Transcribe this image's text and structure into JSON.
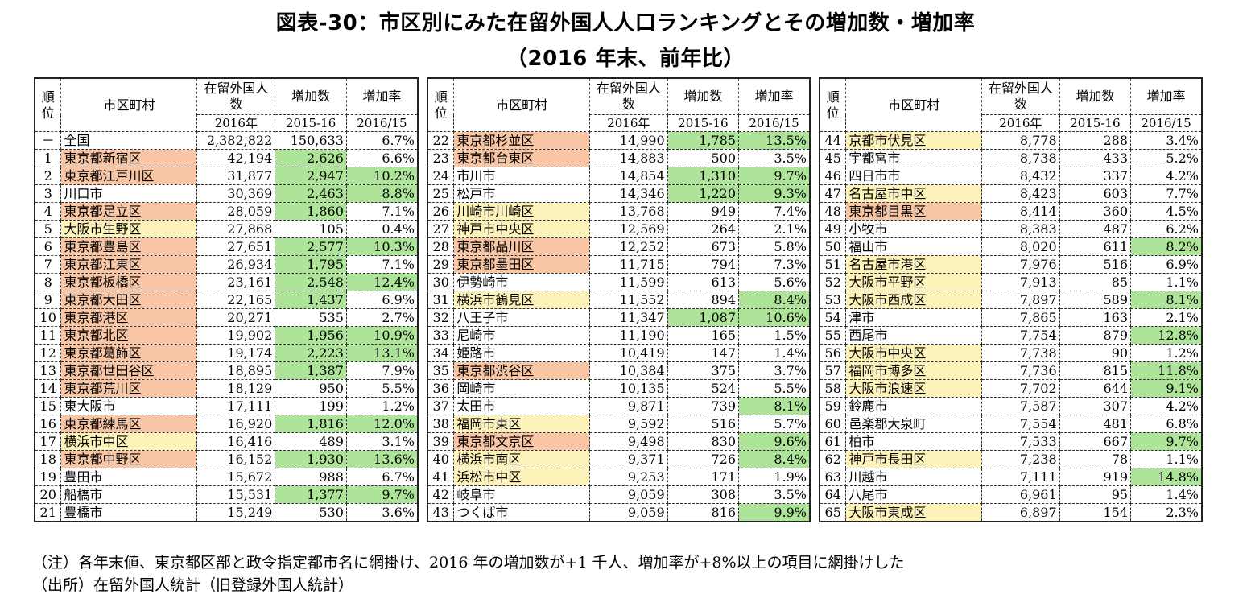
{
  "title": "図表-30：市区別にみた在留外国人人口ランキングとその増加数・増加率",
  "subtitle": "（2016 年末、前年比）",
  "headers": {
    "rank": "順位",
    "name": "市区町村",
    "pop": "在留外国人数",
    "inc": "増加数",
    "rate": "増加率",
    "pop_sub": "2016年",
    "inc_sub": "2015-16",
    "rate_sub": "2016/15"
  },
  "tables": [
    {
      "rows": [
        {
          "rank": "－",
          "name": "全国",
          "pop": "2,382,822",
          "inc": "150,633",
          "rate": "6.7%",
          "hl": "",
          "inc_hl": false,
          "rate_hl": false
        },
        {
          "rank": "1",
          "name": "東京都新宿区",
          "pop": "42,194",
          "inc": "2,626",
          "rate": "6.6%",
          "hl": "o",
          "inc_hl": true,
          "rate_hl": false
        },
        {
          "rank": "2",
          "name": "東京都江戸川区",
          "pop": "31,877",
          "inc": "2,947",
          "rate": "10.2%",
          "hl": "o",
          "inc_hl": true,
          "rate_hl": true
        },
        {
          "rank": "3",
          "name": "川口市",
          "pop": "30,369",
          "inc": "2,463",
          "rate": "8.8%",
          "hl": "",
          "inc_hl": true,
          "rate_hl": true
        },
        {
          "rank": "4",
          "name": "東京都足立区",
          "pop": "28,059",
          "inc": "1,860",
          "rate": "7.1%",
          "hl": "o",
          "inc_hl": true,
          "rate_hl": false
        },
        {
          "rank": "5",
          "name": "大阪市生野区",
          "pop": "27,868",
          "inc": "105",
          "rate": "0.4%",
          "hl": "y",
          "inc_hl": false,
          "rate_hl": false
        },
        {
          "rank": "6",
          "name": "東京都豊島区",
          "pop": "27,651",
          "inc": "2,577",
          "rate": "10.3%",
          "hl": "o",
          "inc_hl": true,
          "rate_hl": true
        },
        {
          "rank": "7",
          "name": "東京都江東区",
          "pop": "26,934",
          "inc": "1,795",
          "rate": "7.1%",
          "hl": "o",
          "inc_hl": true,
          "rate_hl": false
        },
        {
          "rank": "8",
          "name": "東京都板橋区",
          "pop": "23,161",
          "inc": "2,548",
          "rate": "12.4%",
          "hl": "o",
          "inc_hl": true,
          "rate_hl": true
        },
        {
          "rank": "9",
          "name": "東京都大田区",
          "pop": "22,165",
          "inc": "1,437",
          "rate": "6.9%",
          "hl": "o",
          "inc_hl": true,
          "rate_hl": false
        },
        {
          "rank": "10",
          "name": "東京都港区",
          "pop": "20,271",
          "inc": "535",
          "rate": "2.7%",
          "hl": "o",
          "inc_hl": false,
          "rate_hl": false
        },
        {
          "rank": "11",
          "name": "東京都北区",
          "pop": "19,902",
          "inc": "1,956",
          "rate": "10.9%",
          "hl": "o",
          "inc_hl": true,
          "rate_hl": true
        },
        {
          "rank": "12",
          "name": "東京都葛飾区",
          "pop": "19,174",
          "inc": "2,223",
          "rate": "13.1%",
          "hl": "o",
          "inc_hl": true,
          "rate_hl": true
        },
        {
          "rank": "13",
          "name": "東京都世田谷区",
          "pop": "18,895",
          "inc": "1,387",
          "rate": "7.9%",
          "hl": "o",
          "inc_hl": true,
          "rate_hl": false
        },
        {
          "rank": "14",
          "name": "東京都荒川区",
          "pop": "18,129",
          "inc": "950",
          "rate": "5.5%",
          "hl": "o",
          "inc_hl": false,
          "rate_hl": false
        },
        {
          "rank": "15",
          "name": "東大阪市",
          "pop": "17,111",
          "inc": "199",
          "rate": "1.2%",
          "hl": "",
          "inc_hl": false,
          "rate_hl": false
        },
        {
          "rank": "16",
          "name": "東京都練馬区",
          "pop": "16,920",
          "inc": "1,816",
          "rate": "12.0%",
          "hl": "o",
          "inc_hl": true,
          "rate_hl": true
        },
        {
          "rank": "17",
          "name": "横浜市中区",
          "pop": "16,416",
          "inc": "489",
          "rate": "3.1%",
          "hl": "y",
          "inc_hl": false,
          "rate_hl": false
        },
        {
          "rank": "18",
          "name": "東京都中野区",
          "pop": "16,152",
          "inc": "1,930",
          "rate": "13.6%",
          "hl": "o",
          "inc_hl": true,
          "rate_hl": true
        },
        {
          "rank": "19",
          "name": "豊田市",
          "pop": "15,672",
          "inc": "988",
          "rate": "6.7%",
          "hl": "",
          "inc_hl": false,
          "rate_hl": false
        },
        {
          "rank": "20",
          "name": "船橋市",
          "pop": "15,531",
          "inc": "1,377",
          "rate": "9.7%",
          "hl": "",
          "inc_hl": true,
          "rate_hl": true
        },
        {
          "rank": "21",
          "name": "豊橋市",
          "pop": "15,249",
          "inc": "530",
          "rate": "3.6%",
          "hl": "",
          "inc_hl": false,
          "rate_hl": false
        }
      ]
    },
    {
      "rows": [
        {
          "rank": "22",
          "name": "東京都杉並区",
          "pop": "14,990",
          "inc": "1,785",
          "rate": "13.5%",
          "hl": "o",
          "inc_hl": true,
          "rate_hl": true
        },
        {
          "rank": "23",
          "name": "東京都台東区",
          "pop": "14,883",
          "inc": "500",
          "rate": "3.5%",
          "hl": "o",
          "inc_hl": false,
          "rate_hl": false
        },
        {
          "rank": "24",
          "name": "市川市",
          "pop": "14,854",
          "inc": "1,310",
          "rate": "9.7%",
          "hl": "",
          "inc_hl": true,
          "rate_hl": true
        },
        {
          "rank": "25",
          "name": "松戸市",
          "pop": "14,346",
          "inc": "1,220",
          "rate": "9.3%",
          "hl": "",
          "inc_hl": true,
          "rate_hl": true
        },
        {
          "rank": "26",
          "name": "川崎市川崎区",
          "pop": "13,768",
          "inc": "949",
          "rate": "7.4%",
          "hl": "y",
          "inc_hl": false,
          "rate_hl": false
        },
        {
          "rank": "27",
          "name": "神戸市中央区",
          "pop": "12,569",
          "inc": "264",
          "rate": "2.1%",
          "hl": "y",
          "inc_hl": false,
          "rate_hl": false
        },
        {
          "rank": "28",
          "name": "東京都品川区",
          "pop": "12,252",
          "inc": "673",
          "rate": "5.8%",
          "hl": "o",
          "inc_hl": false,
          "rate_hl": false
        },
        {
          "rank": "29",
          "name": "東京都墨田区",
          "pop": "11,715",
          "inc": "794",
          "rate": "7.3%",
          "hl": "o",
          "inc_hl": false,
          "rate_hl": false
        },
        {
          "rank": "30",
          "name": "伊勢崎市",
          "pop": "11,599",
          "inc": "613",
          "rate": "5.6%",
          "hl": "",
          "inc_hl": false,
          "rate_hl": false
        },
        {
          "rank": "31",
          "name": "横浜市鶴見区",
          "pop": "11,552",
          "inc": "894",
          "rate": "8.4%",
          "hl": "y",
          "inc_hl": false,
          "rate_hl": true
        },
        {
          "rank": "32",
          "name": "八王子市",
          "pop": "11,347",
          "inc": "1,087",
          "rate": "10.6%",
          "hl": "",
          "inc_hl": true,
          "rate_hl": true
        },
        {
          "rank": "33",
          "name": "尼崎市",
          "pop": "11,190",
          "inc": "165",
          "rate": "1.5%",
          "hl": "",
          "inc_hl": false,
          "rate_hl": false
        },
        {
          "rank": "34",
          "name": "姫路市",
          "pop": "10,419",
          "inc": "147",
          "rate": "1.4%",
          "hl": "",
          "inc_hl": false,
          "rate_hl": false
        },
        {
          "rank": "35",
          "name": "東京都渋谷区",
          "pop": "10,384",
          "inc": "375",
          "rate": "3.7%",
          "hl": "o",
          "inc_hl": false,
          "rate_hl": false
        },
        {
          "rank": "36",
          "name": "岡崎市",
          "pop": "10,135",
          "inc": "524",
          "rate": "5.5%",
          "hl": "",
          "inc_hl": false,
          "rate_hl": false
        },
        {
          "rank": "37",
          "name": "太田市",
          "pop": "9,871",
          "inc": "739",
          "rate": "8.1%",
          "hl": "",
          "inc_hl": false,
          "rate_hl": true
        },
        {
          "rank": "38",
          "name": "福岡市東区",
          "pop": "9,592",
          "inc": "516",
          "rate": "5.7%",
          "hl": "y",
          "inc_hl": false,
          "rate_hl": false
        },
        {
          "rank": "39",
          "name": "東京都文京区",
          "pop": "9,498",
          "inc": "830",
          "rate": "9.6%",
          "hl": "o",
          "inc_hl": false,
          "rate_hl": true
        },
        {
          "rank": "40",
          "name": "横浜市南区",
          "pop": "9,371",
          "inc": "726",
          "rate": "8.4%",
          "hl": "y",
          "inc_hl": false,
          "rate_hl": true
        },
        {
          "rank": "41",
          "name": "浜松市中区",
          "pop": "9,253",
          "inc": "171",
          "rate": "1.9%",
          "hl": "y",
          "inc_hl": false,
          "rate_hl": false
        },
        {
          "rank": "42",
          "name": "岐阜市",
          "pop": "9,059",
          "inc": "308",
          "rate": "3.5%",
          "hl": "",
          "inc_hl": false,
          "rate_hl": false
        },
        {
          "rank": "43",
          "name": "つくば市",
          "pop": "9,059",
          "inc": "816",
          "rate": "9.9%",
          "hl": "",
          "inc_hl": false,
          "rate_hl": true
        }
      ]
    },
    {
      "rows": [
        {
          "rank": "44",
          "name": "京都市伏見区",
          "pop": "8,778",
          "inc": "288",
          "rate": "3.4%",
          "hl": "y",
          "inc_hl": false,
          "rate_hl": false
        },
        {
          "rank": "45",
          "name": "宇都宮市",
          "pop": "8,738",
          "inc": "433",
          "rate": "5.2%",
          "hl": "",
          "inc_hl": false,
          "rate_hl": false
        },
        {
          "rank": "46",
          "name": "四日市市",
          "pop": "8,432",
          "inc": "337",
          "rate": "4.2%",
          "hl": "",
          "inc_hl": false,
          "rate_hl": false
        },
        {
          "rank": "47",
          "name": "名古屋市中区",
          "pop": "8,423",
          "inc": "603",
          "rate": "7.7%",
          "hl": "y",
          "inc_hl": false,
          "rate_hl": false
        },
        {
          "rank": "48",
          "name": "東京都目黒区",
          "pop": "8,414",
          "inc": "360",
          "rate": "4.5%",
          "hl": "o",
          "inc_hl": false,
          "rate_hl": false
        },
        {
          "rank": "49",
          "name": "小牧市",
          "pop": "8,383",
          "inc": "487",
          "rate": "6.2%",
          "hl": "",
          "inc_hl": false,
          "rate_hl": false
        },
        {
          "rank": "50",
          "name": "福山市",
          "pop": "8,020",
          "inc": "611",
          "rate": "8.2%",
          "hl": "",
          "inc_hl": false,
          "rate_hl": true
        },
        {
          "rank": "51",
          "name": "名古屋市港区",
          "pop": "7,976",
          "inc": "516",
          "rate": "6.9%",
          "hl": "y",
          "inc_hl": false,
          "rate_hl": false
        },
        {
          "rank": "52",
          "name": "大阪市平野区",
          "pop": "7,913",
          "inc": "85",
          "rate": "1.1%",
          "hl": "y",
          "inc_hl": false,
          "rate_hl": false
        },
        {
          "rank": "53",
          "name": "大阪市西成区",
          "pop": "7,897",
          "inc": "589",
          "rate": "8.1%",
          "hl": "y",
          "inc_hl": false,
          "rate_hl": true
        },
        {
          "rank": "54",
          "name": "津市",
          "pop": "7,865",
          "inc": "163",
          "rate": "2.1%",
          "hl": "",
          "inc_hl": false,
          "rate_hl": false
        },
        {
          "rank": "55",
          "name": "西尾市",
          "pop": "7,754",
          "inc": "879",
          "rate": "12.8%",
          "hl": "",
          "inc_hl": false,
          "rate_hl": true
        },
        {
          "rank": "56",
          "name": "大阪市中央区",
          "pop": "7,738",
          "inc": "90",
          "rate": "1.2%",
          "hl": "y",
          "inc_hl": false,
          "rate_hl": false
        },
        {
          "rank": "57",
          "name": "福岡市博多区",
          "pop": "7,736",
          "inc": "815",
          "rate": "11.8%",
          "hl": "y",
          "inc_hl": false,
          "rate_hl": true
        },
        {
          "rank": "58",
          "name": "大阪市浪速区",
          "pop": "7,702",
          "inc": "644",
          "rate": "9.1%",
          "hl": "y",
          "inc_hl": false,
          "rate_hl": true
        },
        {
          "rank": "59",
          "name": "鈴鹿市",
          "pop": "7,587",
          "inc": "307",
          "rate": "4.2%",
          "hl": "",
          "inc_hl": false,
          "rate_hl": false
        },
        {
          "rank": "60",
          "name": "邑楽郡大泉町",
          "pop": "7,554",
          "inc": "481",
          "rate": "6.8%",
          "hl": "",
          "inc_hl": false,
          "rate_hl": false
        },
        {
          "rank": "61",
          "name": "柏市",
          "pop": "7,533",
          "inc": "667",
          "rate": "9.7%",
          "hl": "",
          "inc_hl": false,
          "rate_hl": true
        },
        {
          "rank": "62",
          "name": "神戸市長田区",
          "pop": "7,238",
          "inc": "78",
          "rate": "1.1%",
          "hl": "y",
          "inc_hl": false,
          "rate_hl": false
        },
        {
          "rank": "63",
          "name": "川越市",
          "pop": "7,111",
          "inc": "919",
          "rate": "14.8%",
          "hl": "",
          "inc_hl": false,
          "rate_hl": true
        },
        {
          "rank": "64",
          "name": "八尾市",
          "pop": "6,961",
          "inc": "95",
          "rate": "1.4%",
          "hl": "",
          "inc_hl": false,
          "rate_hl": false
        },
        {
          "rank": "65",
          "name": "大阪市東成区",
          "pop": "6,897",
          "inc": "154",
          "rate": "2.3%",
          "hl": "y",
          "inc_hl": false,
          "rate_hl": false
        }
      ]
    }
  ],
  "notes": {
    "note": "（注）各年末値、東京都区部と政令指定都市名に網掛け、2016 年の増加数が+1 千人、増加率が+8%以上の項目に網掛けした",
    "source": "（出所）在留外国人統計（旧登録外国人統計）"
  },
  "colors": {
    "tokyo_ward": "#f8c6a4",
    "designated_city": "#fdf2b9",
    "threshold": "#aee39a"
  }
}
